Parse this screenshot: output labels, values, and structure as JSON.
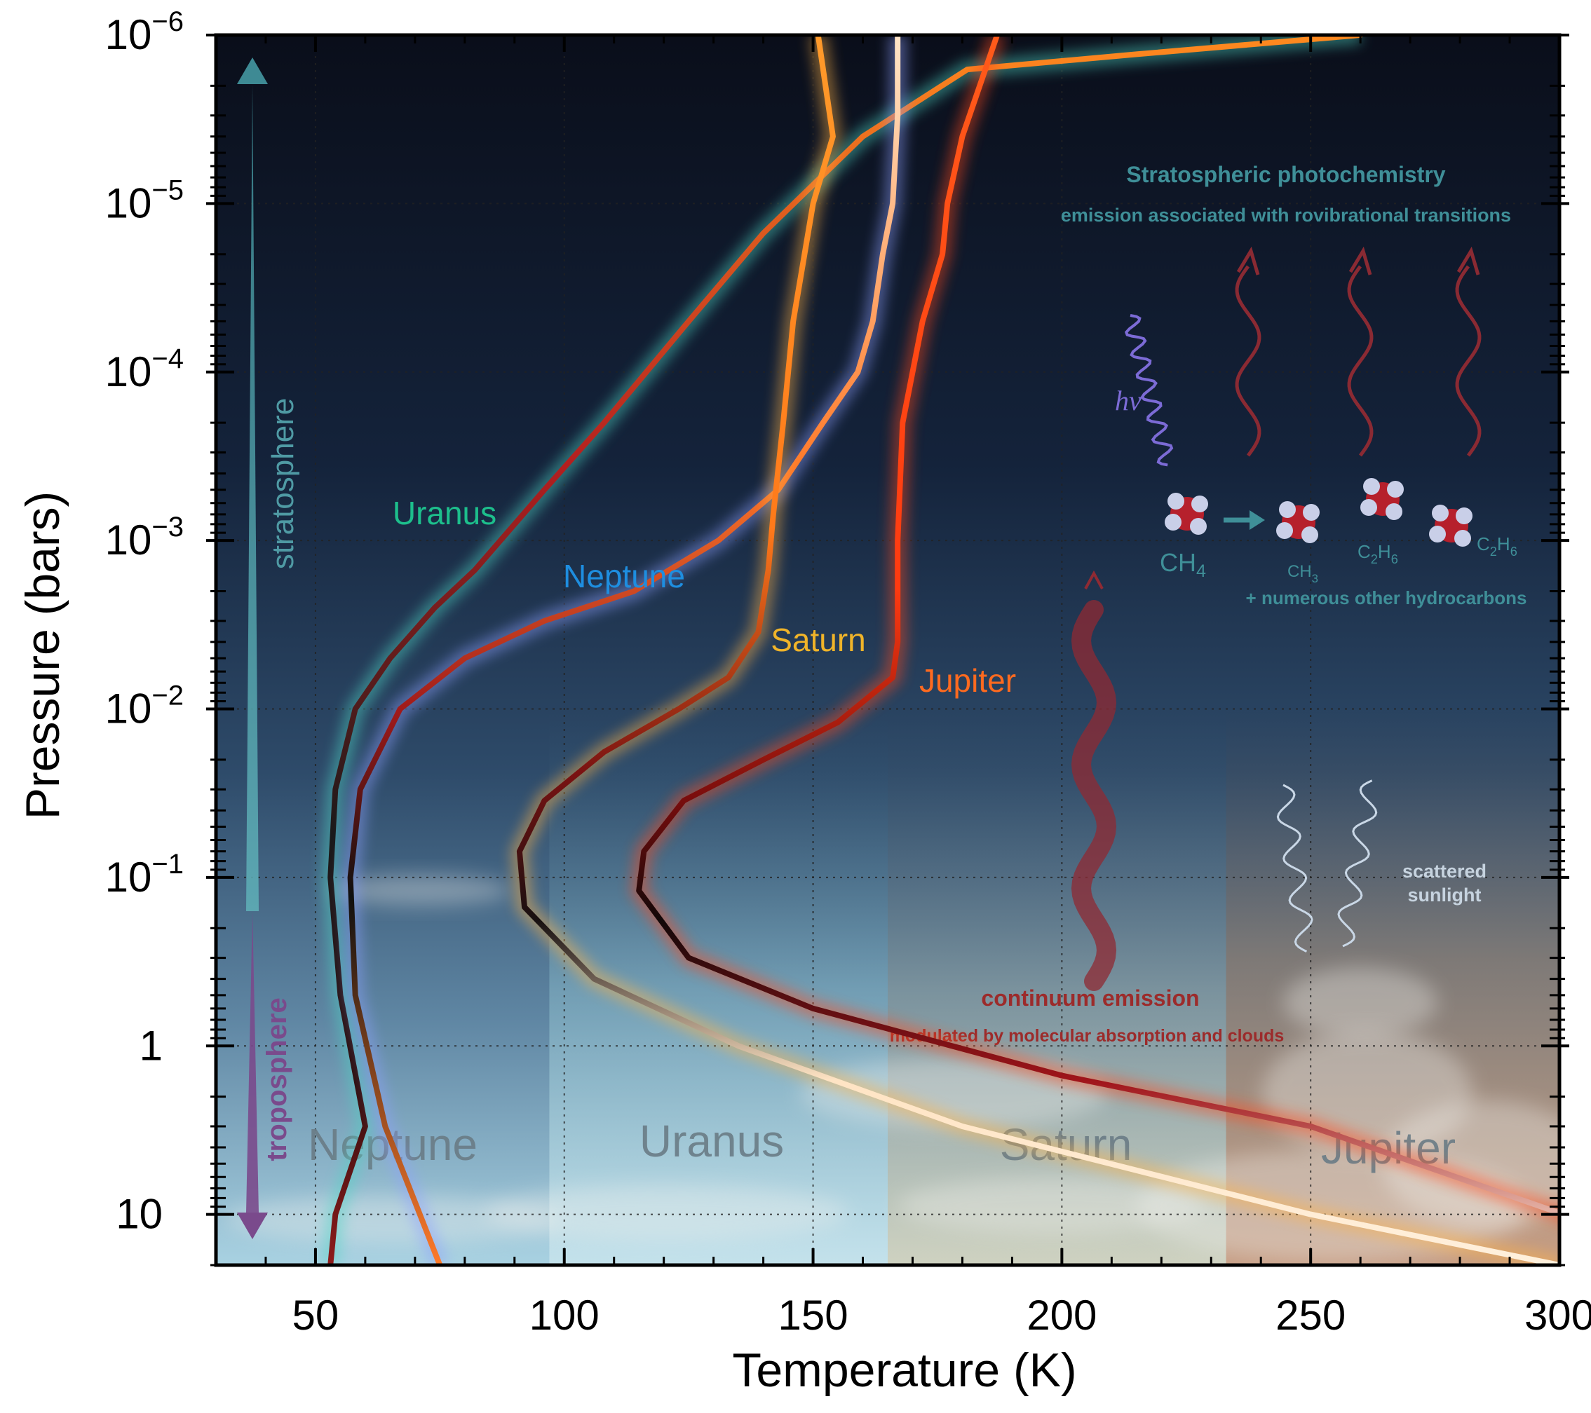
{
  "chart_data": {
    "type": "line",
    "xlabel": "Temperature (K)",
    "ylabel": "Pressure (bars)",
    "xlim": [
      30,
      300
    ],
    "ylim": [
      20,
      1e-06
    ],
    "y_scale": "log",
    "grid": true,
    "x_ticks": [
      50,
      100,
      150,
      200,
      250,
      300
    ],
    "x_tick_labels": [
      "50",
      "100",
      "150",
      "200",
      "250",
      "300"
    ],
    "y_ticks": [
      {
        "value": 1e-06,
        "base": "10",
        "exp": "−6"
      },
      {
        "value": 1e-05,
        "base": "10",
        "exp": "−5"
      },
      {
        "value": 0.0001,
        "base": "10",
        "exp": "−4"
      },
      {
        "value": 0.001,
        "base": "10",
        "exp": "−3"
      },
      {
        "value": 0.01,
        "base": "10",
        "exp": "−2"
      },
      {
        "value": 0.1,
        "base": "10",
        "exp": "−1"
      },
      {
        "value": 1,
        "base": "1",
        "exp": ""
      },
      {
        "value": 10,
        "base": "10",
        "exp": ""
      }
    ],
    "series": [
      {
        "name": "Uranus",
        "label_color": "#1dbf8c",
        "glow": "#4fd6c4",
        "points": [
          [
            53,
            20
          ],
          [
            54,
            10
          ],
          [
            60,
            3
          ],
          [
            55,
            0.5
          ],
          [
            53,
            0.1
          ],
          [
            54,
            0.03
          ],
          [
            58,
            0.01
          ],
          [
            65,
            0.005
          ],
          [
            74,
            0.0025
          ],
          [
            82,
            0.0015
          ],
          [
            96,
            0.0005
          ],
          [
            108,
            0.0002
          ],
          [
            125,
            5e-05
          ],
          [
            140,
            1.5e-05
          ],
          [
            160,
            4e-06
          ],
          [
            181,
            1.6e-06
          ],
          [
            215,
            1.3e-06
          ],
          [
            260,
            1e-06
          ]
        ]
      },
      {
        "name": "Neptune",
        "label_color": "#1e8ee0",
        "glow": "#8fa0ff",
        "points": [
          [
            75,
            20
          ],
          [
            64,
            3
          ],
          [
            58,
            0.5
          ],
          [
            57,
            0.1
          ],
          [
            59,
            0.03
          ],
          [
            67,
            0.01
          ],
          [
            80,
            0.005
          ],
          [
            96,
            0.003
          ],
          [
            114,
            0.002
          ],
          [
            131,
            0.001
          ],
          [
            143,
            0.0005
          ],
          [
            152,
            0.0002
          ],
          [
            159,
            0.0001
          ],
          [
            162,
            5e-05
          ],
          [
            164,
            2e-05
          ],
          [
            166,
            1e-05
          ],
          [
            167,
            3e-06
          ],
          [
            167,
            1e-06
          ]
        ]
      },
      {
        "name": "Saturn",
        "label_color": "#f0b429",
        "glow": "#ffb347",
        "points": [
          [
            300,
            20
          ],
          [
            250,
            10
          ],
          [
            180,
            3
          ],
          [
            135,
            1
          ],
          [
            106,
            0.4
          ],
          [
            92,
            0.15
          ],
          [
            91,
            0.07
          ],
          [
            96,
            0.035
          ],
          [
            108,
            0.018
          ],
          [
            123,
            0.01
          ],
          [
            133,
            0.0065
          ],
          [
            139,
            0.0035
          ],
          [
            141,
            0.0015
          ],
          [
            142,
            0.0007
          ],
          [
            144,
            0.0002
          ],
          [
            146,
            5e-05
          ],
          [
            150,
            1e-05
          ],
          [
            154,
            4e-06
          ],
          [
            151,
            1e-06
          ]
        ]
      },
      {
        "name": "Jupiter",
        "label_color": "#ff6a1f",
        "glow": "#ff4a1a",
        "points": [
          [
            330,
            20
          ],
          [
            250,
            3
          ],
          [
            200,
            1.5
          ],
          [
            150,
            0.6
          ],
          [
            125,
            0.3
          ],
          [
            115,
            0.12
          ],
          [
            116,
            0.07
          ],
          [
            124,
            0.035
          ],
          [
            140,
            0.02
          ],
          [
            155,
            0.012
          ],
          [
            166,
            0.0065
          ],
          [
            167,
            0.004
          ],
          [
            167,
            0.001
          ],
          [
            168,
            0.0002
          ],
          [
            172,
            5e-05
          ],
          [
            176,
            2e-05
          ],
          [
            177,
            1e-05
          ],
          [
            180,
            4e-06
          ],
          [
            187,
            1e-06
          ]
        ]
      }
    ],
    "annotations": {
      "stratosphere": "stratosphere",
      "troposphere": "troposphere",
      "photochem_title": "Stratospheric photochemistry",
      "photochem_sub": "emission associated with rovibrational transitions",
      "hv": "hν",
      "other_hydrocarbons": "+ numerous other hydrocarbons",
      "continuum_title": "continuum emission",
      "continuum_sub": "modulated by molecular absorption and clouds",
      "scattered_sunlight": [
        "scattered",
        "sunlight"
      ],
      "panel_labels": [
        "Neptune",
        "Uranus",
        "Saturn",
        "Jupiter"
      ]
    },
    "molecules": [
      {
        "base": "CH",
        "sub": "4"
      },
      {
        "base": "CH",
        "sub": "3"
      },
      {
        "base": "C",
        "sub": "2",
        "mid": "H",
        "sub2": "6"
      },
      {
        "base": "C",
        "sub": "2",
        "mid": "H",
        "sub2": "6"
      }
    ],
    "colors": {
      "accent_teal": "#3f8f98",
      "accent_purple": "#7a4a8c",
      "continuum_red": "#9c2b2b",
      "sky_top": "#0b1020",
      "sky_bottom": "#9fd4e6"
    }
  }
}
